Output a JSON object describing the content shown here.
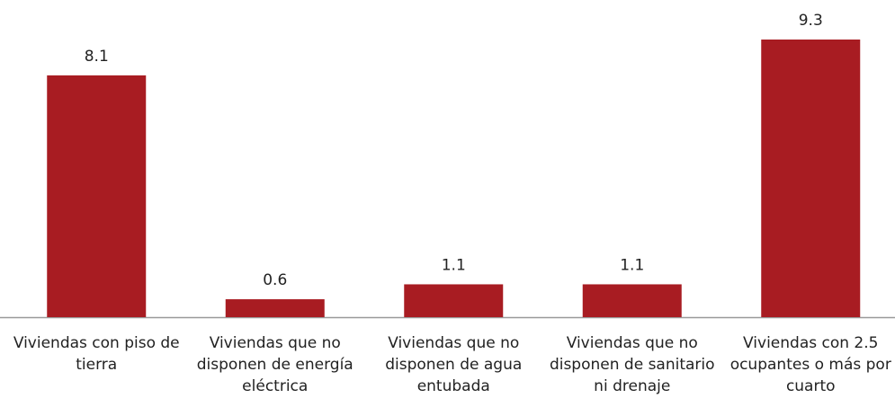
{
  "chart_data": {
    "type": "bar",
    "categories": [
      "Viviendas con piso de tierra",
      "Viviendas que no disponen de energía eléctrica",
      "Viviendas que no disponen de agua entubada",
      "Viviendas que no disponen de sanitario ni drenaje",
      "Viviendas con 2.5 ocupantes o más por cuarto"
    ],
    "values": [
      8.1,
      0.6,
      1.1,
      1.1,
      9.3
    ],
    "color": "#a81c22"
  }
}
